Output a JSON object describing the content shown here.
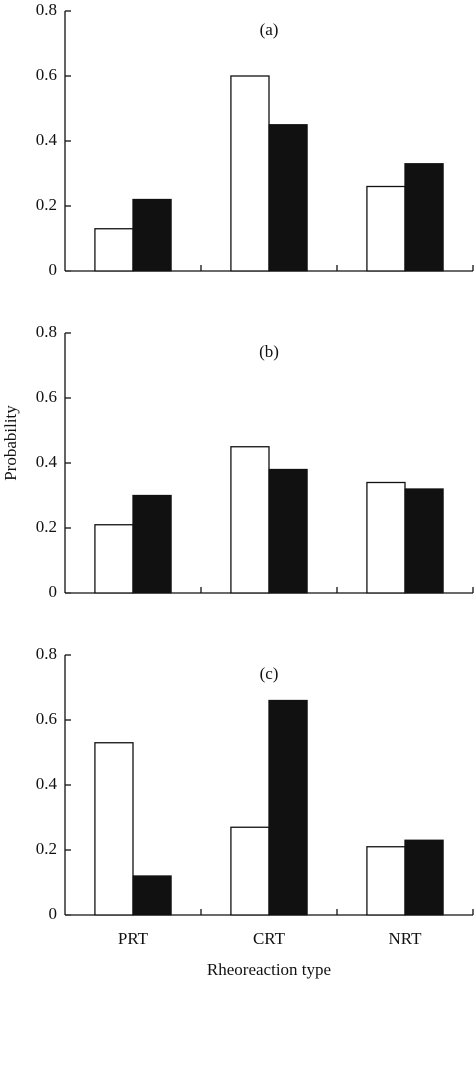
{
  "chart_data": [
    {
      "type": "bar",
      "panel_label": "(a)",
      "ylim": [
        0,
        0.8
      ],
      "yticks": [
        0,
        0.2,
        0.4,
        0.6,
        0.8
      ],
      "series": [
        {
          "color": "#ffffff",
          "values": [
            0.13,
            0.6,
            0.26
          ]
        },
        {
          "color": "#111111",
          "values": [
            0.22,
            0.45,
            0.33
          ]
        }
      ]
    },
    {
      "type": "bar",
      "panel_label": "(b)",
      "y_label": "Probability",
      "ylim": [
        0,
        0.8
      ],
      "yticks": [
        0,
        0.2,
        0.4,
        0.6,
        0.8
      ],
      "series": [
        {
          "color": "#ffffff",
          "values": [
            0.21,
            0.45,
            0.34
          ]
        },
        {
          "color": "#111111",
          "values": [
            0.3,
            0.38,
            0.32
          ]
        }
      ]
    },
    {
      "type": "bar",
      "panel_label": "(c)",
      "x_label": "Rheoreaction type",
      "categories": [
        "PRT",
        "CRT",
        "NRT"
      ],
      "ylim": [
        0,
        0.8
      ],
      "yticks": [
        0,
        0.2,
        0.4,
        0.6,
        0.8
      ],
      "series": [
        {
          "color": "#ffffff",
          "values": [
            0.53,
            0.27,
            0.21
          ]
        },
        {
          "color": "#111111",
          "values": [
            0.12,
            0.66,
            0.23
          ]
        }
      ]
    }
  ]
}
